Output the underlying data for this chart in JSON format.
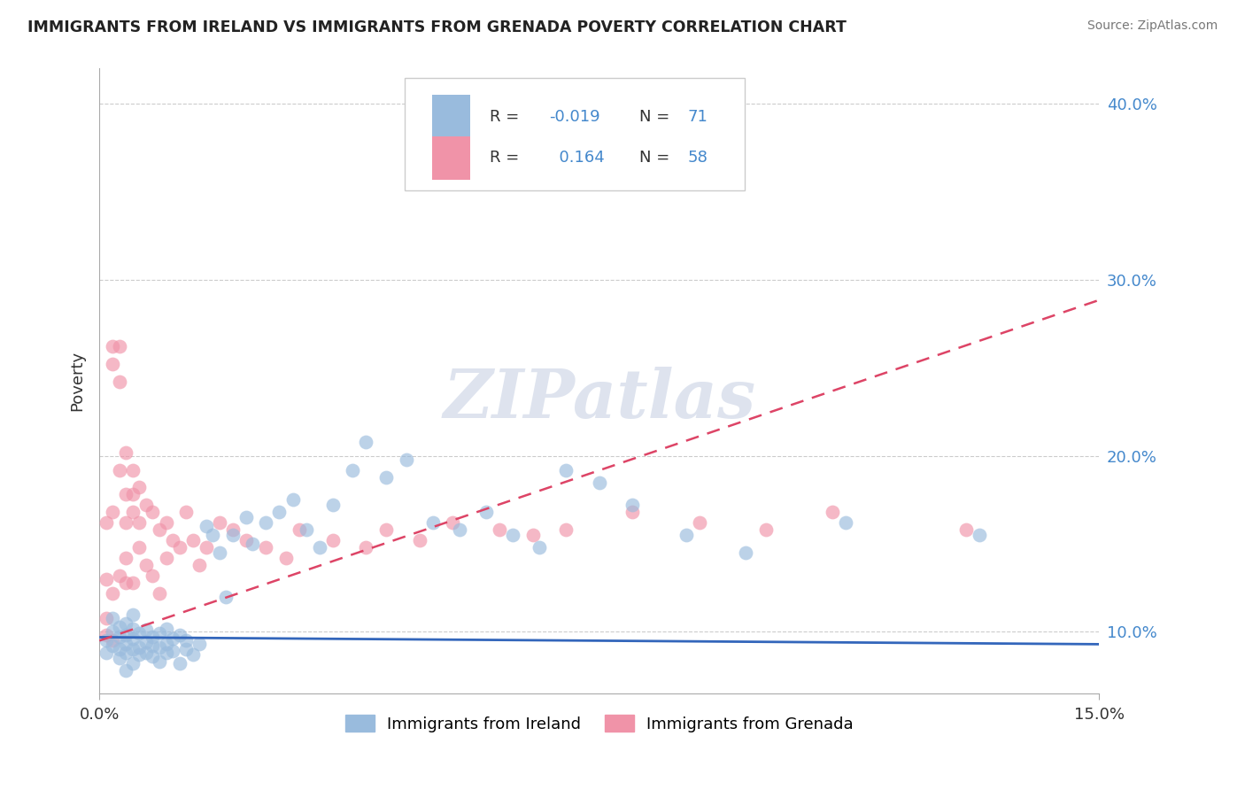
{
  "title": "IMMIGRANTS FROM IRELAND VS IMMIGRANTS FROM GRENADA POVERTY CORRELATION CHART",
  "source": "Source: ZipAtlas.com",
  "ylabel": "Poverty",
  "watermark": "ZIPatlas",
  "ireland_color": "#99bbdd",
  "grenada_color": "#f093a8",
  "ireland_line_color": "#3366bb",
  "grenada_line_color": "#dd4466",
  "ytick_color": "#4488cc",
  "xlim": [
    0.0,
    0.15
  ],
  "ylim": [
    0.065,
    0.42
  ],
  "yticks": [
    0.1,
    0.2,
    0.3,
    0.4
  ],
  "ytick_labels": [
    "10.0%",
    "20.0%",
    "30.0%",
    "40.0%"
  ],
  "xticks": [
    0.0,
    0.15
  ],
  "xtick_labels": [
    "0.0%",
    "15.0%"
  ],
  "background_color": "#ffffff",
  "ireland_label": "Immigrants from Ireland",
  "grenada_label": "Immigrants from Grenada",
  "R_ireland": -0.019,
  "N_ireland": 71,
  "R_grenada": 0.164,
  "N_grenada": 58,
  "ireland_x": [
    0.001,
    0.001,
    0.002,
    0.002,
    0.002,
    0.003,
    0.003,
    0.003,
    0.003,
    0.004,
    0.004,
    0.004,
    0.004,
    0.004,
    0.005,
    0.005,
    0.005,
    0.005,
    0.005,
    0.006,
    0.006,
    0.006,
    0.007,
    0.007,
    0.007,
    0.008,
    0.008,
    0.008,
    0.009,
    0.009,
    0.009,
    0.01,
    0.01,
    0.01,
    0.011,
    0.011,
    0.012,
    0.012,
    0.013,
    0.013,
    0.014,
    0.015,
    0.016,
    0.017,
    0.018,
    0.019,
    0.02,
    0.022,
    0.023,
    0.025,
    0.027,
    0.029,
    0.031,
    0.033,
    0.035,
    0.038,
    0.04,
    0.043,
    0.046,
    0.05,
    0.054,
    0.058,
    0.062,
    0.066,
    0.07,
    0.075,
    0.08,
    0.088,
    0.097,
    0.112,
    0.132
  ],
  "ireland_y": [
    0.095,
    0.088,
    0.092,
    0.1,
    0.108,
    0.085,
    0.09,
    0.097,
    0.103,
    0.088,
    0.093,
    0.098,
    0.078,
    0.105,
    0.09,
    0.082,
    0.096,
    0.102,
    0.11,
    0.087,
    0.091,
    0.099,
    0.088,
    0.094,
    0.101,
    0.092,
    0.086,
    0.097,
    0.083,
    0.091,
    0.099,
    0.088,
    0.093,
    0.102,
    0.089,
    0.096,
    0.082,
    0.098,
    0.09,
    0.095,
    0.087,
    0.093,
    0.16,
    0.155,
    0.145,
    0.12,
    0.155,
    0.165,
    0.15,
    0.162,
    0.168,
    0.175,
    0.158,
    0.148,
    0.172,
    0.192,
    0.208,
    0.188,
    0.198,
    0.162,
    0.158,
    0.168,
    0.155,
    0.148,
    0.192,
    0.185,
    0.172,
    0.155,
    0.145,
    0.162,
    0.155
  ],
  "grenada_x": [
    0.001,
    0.001,
    0.001,
    0.001,
    0.002,
    0.002,
    0.002,
    0.002,
    0.002,
    0.003,
    0.003,
    0.003,
    0.003,
    0.004,
    0.004,
    0.004,
    0.004,
    0.004,
    0.005,
    0.005,
    0.005,
    0.005,
    0.006,
    0.006,
    0.006,
    0.007,
    0.007,
    0.008,
    0.008,
    0.009,
    0.009,
    0.01,
    0.01,
    0.011,
    0.012,
    0.013,
    0.014,
    0.015,
    0.016,
    0.018,
    0.02,
    0.022,
    0.025,
    0.028,
    0.03,
    0.035,
    0.04,
    0.043,
    0.048,
    0.053,
    0.06,
    0.065,
    0.07,
    0.08,
    0.09,
    0.1,
    0.11,
    0.13
  ],
  "grenada_y": [
    0.108,
    0.162,
    0.13,
    0.098,
    0.252,
    0.262,
    0.168,
    0.122,
    0.095,
    0.242,
    0.262,
    0.192,
    0.132,
    0.202,
    0.178,
    0.162,
    0.142,
    0.128,
    0.192,
    0.178,
    0.168,
    0.128,
    0.182,
    0.162,
    0.148,
    0.172,
    0.138,
    0.168,
    0.132,
    0.158,
    0.122,
    0.162,
    0.142,
    0.152,
    0.148,
    0.168,
    0.152,
    0.138,
    0.148,
    0.162,
    0.158,
    0.152,
    0.148,
    0.142,
    0.158,
    0.152,
    0.148,
    0.158,
    0.152,
    0.162,
    0.158,
    0.155,
    0.158,
    0.168,
    0.162,
    0.158,
    0.168,
    0.158
  ]
}
